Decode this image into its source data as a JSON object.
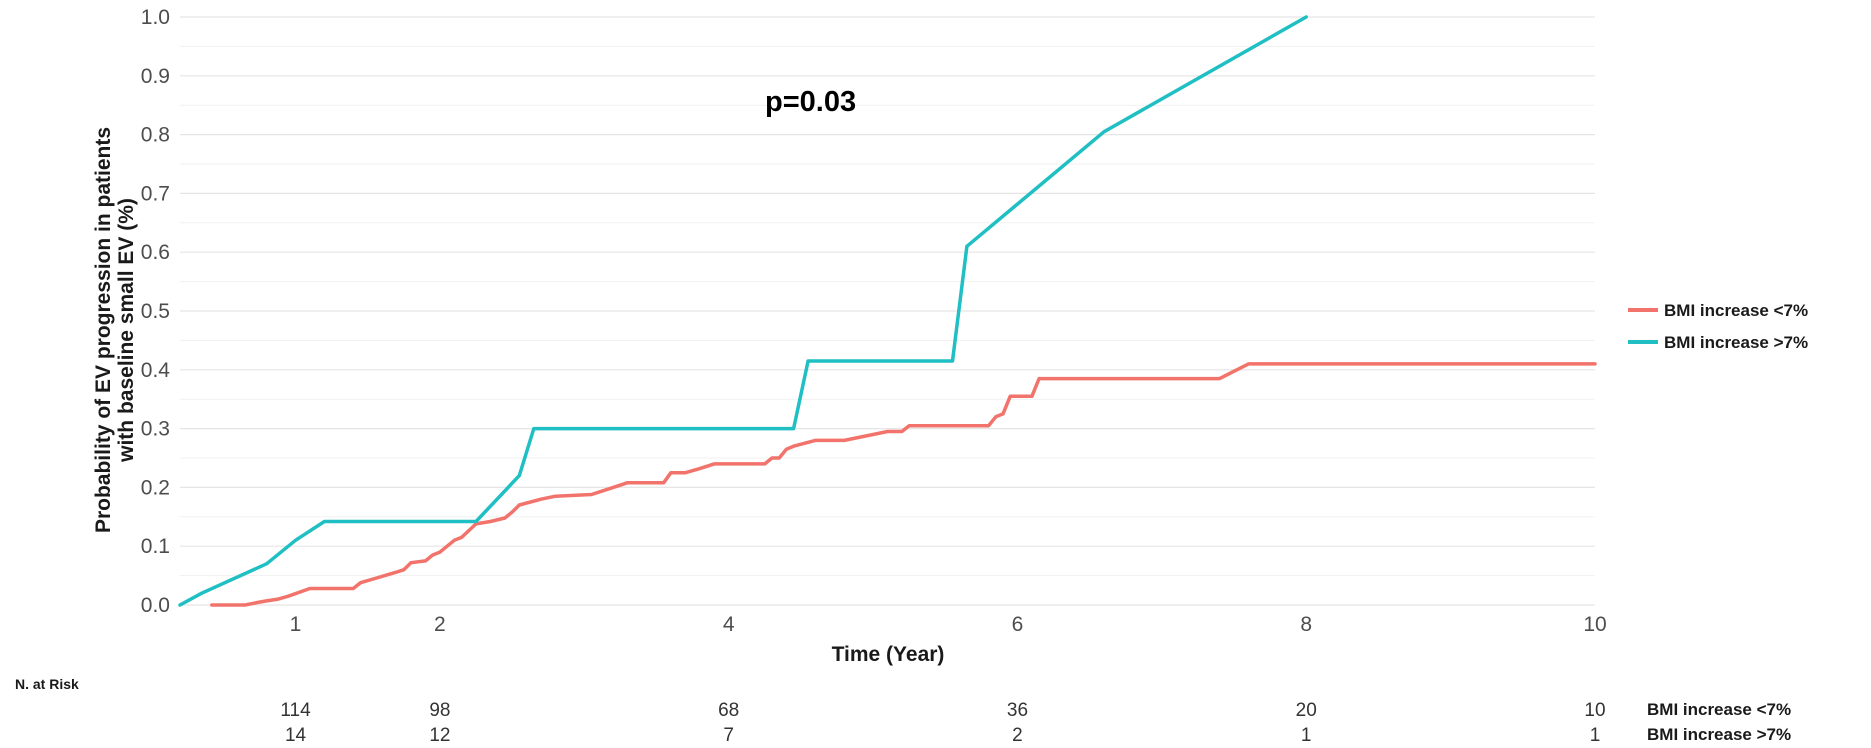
{
  "chart_data": {
    "type": "line",
    "step": true,
    "title": "",
    "annotation": "p=0.03",
    "xlabel": "Time (Year)",
    "ylabel_lines": [
      "Probability of EV progression in patients",
      "with baseline small EV (%)"
    ],
    "xlim": [
      0.2,
      10
    ],
    "ylim": [
      0,
      1
    ],
    "xticks": [
      1,
      2,
      4,
      6,
      8,
      10
    ],
    "yticks": [
      0.0,
      0.1,
      0.2,
      0.3,
      0.4,
      0.5,
      0.6,
      0.7,
      0.8,
      0.9,
      1.0
    ],
    "ytick_labels": [
      "0.0",
      "0.1",
      "0.2",
      "0.3",
      "0.4",
      "0.5",
      "0.6",
      "0.7",
      "0.8",
      "0.9",
      "1.0"
    ],
    "grid": true,
    "legend_position": "right",
    "series": [
      {
        "name": "BMI increase <7%",
        "color": "#f2736b",
        "points": [
          [
            0.42,
            0.0
          ],
          [
            0.65,
            0.0
          ],
          [
            0.75,
            0.005
          ],
          [
            0.8,
            0.007
          ],
          [
            0.88,
            0.01
          ],
          [
            0.95,
            0.015
          ],
          [
            1.1,
            0.028
          ],
          [
            1.4,
            0.028
          ],
          [
            1.45,
            0.038
          ],
          [
            1.55,
            0.045
          ],
          [
            1.7,
            0.056
          ],
          [
            1.75,
            0.06
          ],
          [
            1.8,
            0.072
          ],
          [
            1.9,
            0.075
          ],
          [
            1.95,
            0.085
          ],
          [
            2.0,
            0.09
          ],
          [
            2.05,
            0.1
          ],
          [
            2.1,
            0.11
          ],
          [
            2.15,
            0.115
          ],
          [
            2.25,
            0.138
          ],
          [
            2.35,
            0.142
          ],
          [
            2.45,
            0.148
          ],
          [
            2.5,
            0.158
          ],
          [
            2.55,
            0.17
          ],
          [
            2.7,
            0.18
          ],
          [
            2.8,
            0.185
          ],
          [
            3.05,
            0.188
          ],
          [
            3.2,
            0.2
          ],
          [
            3.3,
            0.208
          ],
          [
            3.55,
            0.208
          ],
          [
            3.6,
            0.225
          ],
          [
            3.7,
            0.225
          ],
          [
            3.8,
            0.232
          ],
          [
            3.9,
            0.24
          ],
          [
            4.25,
            0.24
          ],
          [
            4.3,
            0.25
          ],
          [
            4.35,
            0.25
          ],
          [
            4.4,
            0.265
          ],
          [
            4.45,
            0.27
          ],
          [
            4.6,
            0.28
          ],
          [
            4.8,
            0.28
          ],
          [
            5.0,
            0.29
          ],
          [
            5.1,
            0.295
          ],
          [
            5.2,
            0.295
          ],
          [
            5.25,
            0.305
          ],
          [
            5.65,
            0.305
          ],
          [
            5.8,
            0.305
          ],
          [
            5.85,
            0.32
          ],
          [
            5.9,
            0.325
          ],
          [
            5.95,
            0.355
          ],
          [
            6.1,
            0.355
          ],
          [
            6.15,
            0.385
          ],
          [
            7.4,
            0.385
          ],
          [
            7.6,
            0.41
          ],
          [
            10.0,
            0.41
          ]
        ]
      },
      {
        "name": "BMI increase >7%",
        "color": "#1fbfc3",
        "points": [
          [
            0.2,
            0.0
          ],
          [
            0.35,
            0.02
          ],
          [
            0.8,
            0.07
          ],
          [
            1.0,
            0.11
          ],
          [
            1.2,
            0.142
          ],
          [
            2.2,
            0.142
          ],
          [
            2.25,
            0.142
          ],
          [
            2.55,
            0.22
          ],
          [
            2.65,
            0.3
          ],
          [
            4.45,
            0.3
          ],
          [
            4.55,
            0.415
          ],
          [
            5.55,
            0.415
          ],
          [
            5.65,
            0.61
          ],
          [
            6.6,
            0.805
          ],
          [
            8.0,
            1.0
          ]
        ]
      }
    ],
    "risk_table": {
      "title": "N. at Risk",
      "times": [
        1,
        2,
        4,
        6,
        8,
        10
      ],
      "rows": [
        {
          "label": "BMI increase <7%",
          "values": [
            "114",
            "98",
            "68",
            "36",
            "20",
            "10"
          ]
        },
        {
          "label": "BMI increase >7%",
          "values": [
            "14",
            "12",
            "7",
            "2",
            "1",
            "1"
          ]
        }
      ]
    }
  }
}
